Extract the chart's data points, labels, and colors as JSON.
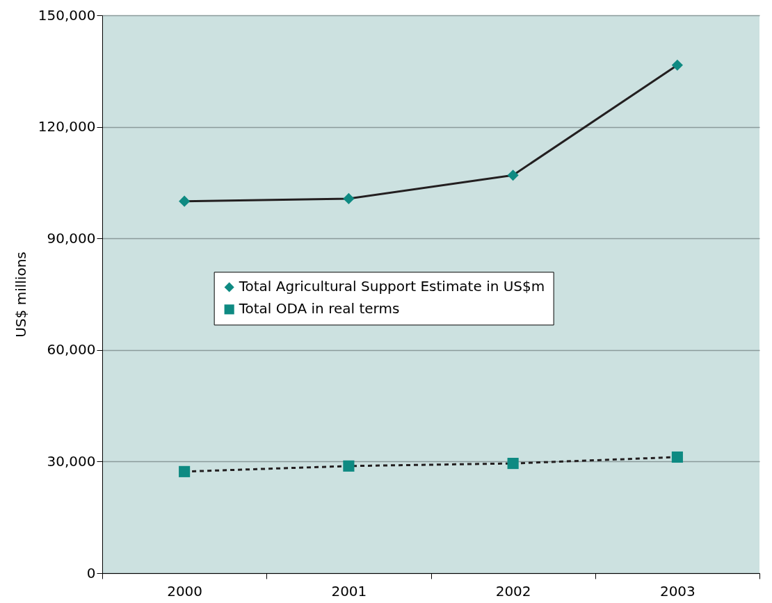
{
  "chart_data": {
    "type": "line",
    "ylabel": "US$ millions",
    "categories": [
      "2000",
      "2001",
      "2002",
      "2003"
    ],
    "series": [
      {
        "name": "Total Agricultural Support Estimate in US$m",
        "color": "#0e8a82",
        "marker": "diamond",
        "line_style": "solid",
        "values": [
          100000,
          100700,
          107000,
          136600
        ]
      },
      {
        "name": "Total ODA in real terms",
        "color": "#0e8a82",
        "marker": "square",
        "line_style": "dashed",
        "values": [
          27300,
          28800,
          29500,
          31200
        ]
      }
    ],
    "ylim": [
      0,
      150000
    ],
    "yticks": [
      0,
      {
        "value": 30000,
        "label": "30,000"
      },
      {
        "value": 60000,
        "label": "60,000"
      },
      {
        "value": 90000,
        "label": "90,000"
      },
      {
        "value": 120000,
        "label": "120,000"
      },
      {
        "value": 150000,
        "label": "150,000"
      }
    ],
    "grid": "y",
    "legend": "left"
  }
}
